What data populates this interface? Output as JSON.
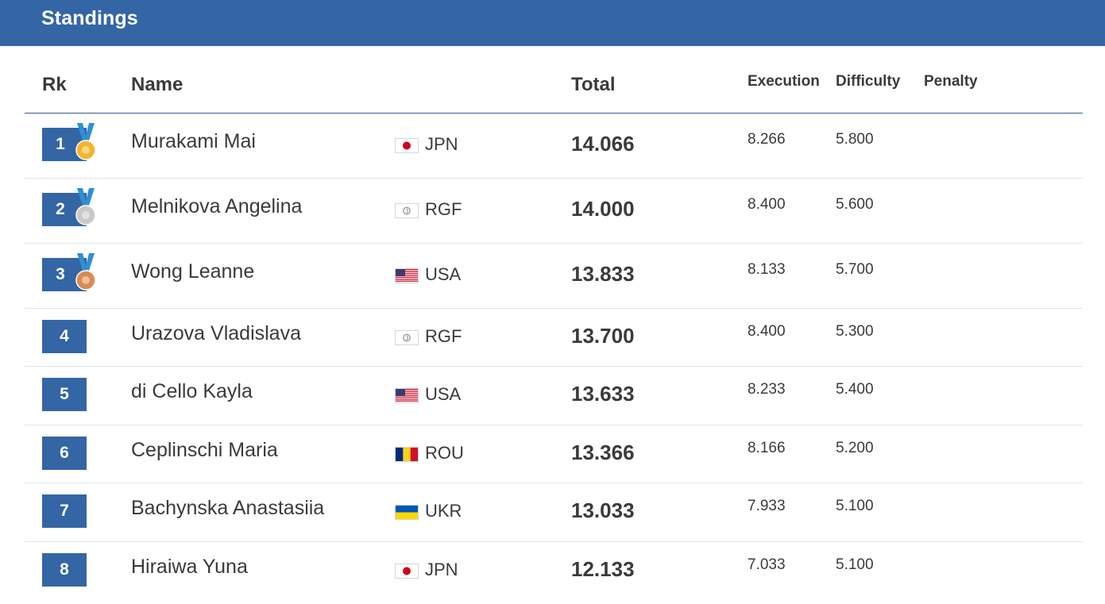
{
  "header": {
    "title": "Standings"
  },
  "columns": {
    "rank": "Rk",
    "name": "Name",
    "total": "Total",
    "execution": "Execution",
    "difficulty": "Difficulty",
    "penalty": "Penalty"
  },
  "colors": {
    "accent": "#3465a4",
    "gold": "#f3b52b",
    "silver": "#c9c9c9",
    "bronze": "#d98a4e",
    "ribbon": "#2f8fd6"
  },
  "rows": [
    {
      "rank": "1",
      "name": "Murakami Mai",
      "noc": "JPN",
      "flag": "japan-flag",
      "medal": "gold",
      "total": "14.066",
      "execution": "8.266",
      "difficulty": "5.800"
    },
    {
      "rank": "2",
      "name": "Melnikova Angelina",
      "noc": "RGF",
      "flag": "rgf-flag",
      "medal": "silver",
      "total": "14.000",
      "execution": "8.400",
      "difficulty": "5.600"
    },
    {
      "rank": "3",
      "name": "Wong Leanne",
      "noc": "USA",
      "flag": "usa-flag",
      "medal": "bronze",
      "total": "13.833",
      "execution": "8.133",
      "difficulty": "5.700"
    },
    {
      "rank": "4",
      "name": "Urazova Vladislava",
      "noc": "RGF",
      "flag": "rgf-flag",
      "medal": "",
      "total": "13.700",
      "execution": "8.400",
      "difficulty": "5.300"
    },
    {
      "rank": "5",
      "name": "di Cello Kayla",
      "noc": "USA",
      "flag": "usa-flag",
      "medal": "",
      "total": "13.633",
      "execution": "8.233",
      "difficulty": "5.400"
    },
    {
      "rank": "6",
      "name": "Ceplinschi Maria",
      "noc": "ROU",
      "flag": "romania-flag",
      "medal": "",
      "total": "13.366",
      "execution": "8.166",
      "difficulty": "5.200"
    },
    {
      "rank": "7",
      "name": "Bachynska Anastasiia",
      "noc": "UKR",
      "flag": "ukraine-flag",
      "medal": "",
      "total": "13.033",
      "execution": "7.933",
      "difficulty": "5.100"
    },
    {
      "rank": "8",
      "name": "Hiraiwa Yuna",
      "noc": "JPN",
      "flag": "japan-flag",
      "medal": "",
      "total": "12.133",
      "execution": "7.033",
      "difficulty": "5.100"
    }
  ]
}
